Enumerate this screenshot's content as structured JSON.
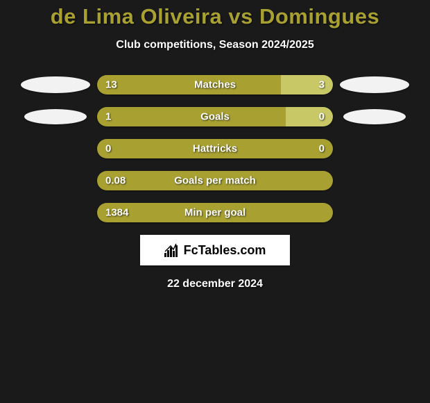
{
  "background_color": "#1a1a1a",
  "title": {
    "text": "de Lima Oliveira vs Domingues",
    "color": "#a8a132",
    "fontsize": 31
  },
  "subtitle": {
    "text": "Club competitions, Season 2024/2025",
    "color": "#ffffff",
    "fontsize": 16
  },
  "bar_colors": {
    "left": "#a8a132",
    "right": "#c9c867"
  },
  "ellipse_color": "#f2f2f2",
  "text_color": "#ffffff",
  "stats": [
    {
      "label": "Matches",
      "left_value": "13",
      "right_value": "3",
      "left_pct": 78,
      "right_pct": 22,
      "show_ellipses": true,
      "ellipse_size": "large"
    },
    {
      "label": "Goals",
      "left_value": "1",
      "right_value": "0",
      "left_pct": 80,
      "right_pct": 20,
      "show_ellipses": true,
      "ellipse_size": "small"
    },
    {
      "label": "Hattricks",
      "left_value": "0",
      "right_value": "0",
      "left_pct": 100,
      "right_pct": 0,
      "show_ellipses": false
    },
    {
      "label": "Goals per match",
      "left_value": "0.08",
      "right_value": "",
      "left_pct": 100,
      "right_pct": 0,
      "show_ellipses": false
    },
    {
      "label": "Min per goal",
      "left_value": "1384",
      "right_value": "",
      "left_pct": 100,
      "right_pct": 0,
      "show_ellipses": false
    }
  ],
  "branding": {
    "text": "FcTables.com",
    "bg_color": "#ffffff",
    "text_color": "#000000"
  },
  "date": {
    "text": "22 december 2024",
    "color": "#ffffff"
  }
}
